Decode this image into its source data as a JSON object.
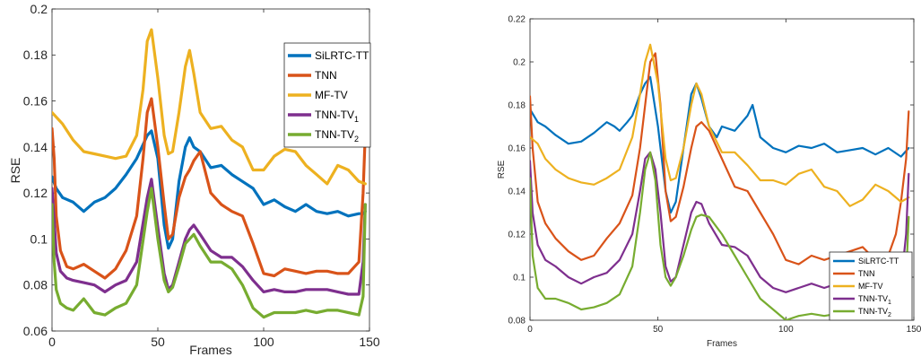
{
  "chart_data": [
    {
      "type": "line",
      "xlabel": "Frames",
      "ylabel": "RSE",
      "xlim": [
        0,
        150
      ],
      "ylim": [
        0.06,
        0.2
      ],
      "xticks": [
        "0",
        "50",
        "100",
        "150"
      ],
      "yticks": [
        "0.06",
        "0.08",
        "0.1",
        "0.12",
        "0.14",
        "0.16",
        "0.18",
        "0.2"
      ],
      "legend_position": "top-right",
      "series": [
        {
          "name": "SiLRTC-TT",
          "sub": "",
          "color": "#0072BD",
          "x": [
            0,
            2,
            5,
            10,
            15,
            20,
            25,
            30,
            35,
            40,
            45,
            47,
            50,
            53,
            55,
            57,
            60,
            63,
            65,
            67,
            70,
            75,
            80,
            85,
            90,
            95,
            100,
            105,
            110,
            115,
            120,
            125,
            130,
            135,
            140,
            145,
            147,
            148
          ],
          "y": [
            0.127,
            0.122,
            0.118,
            0.116,
            0.112,
            0.116,
            0.118,
            0.122,
            0.128,
            0.135,
            0.145,
            0.147,
            0.135,
            0.106,
            0.096,
            0.1,
            0.125,
            0.14,
            0.144,
            0.14,
            0.138,
            0.131,
            0.132,
            0.128,
            0.125,
            0.122,
            0.115,
            0.117,
            0.114,
            0.112,
            0.115,
            0.112,
            0.111,
            0.112,
            0.11,
            0.111,
            0.111,
            0.112
          ]
        },
        {
          "name": "TNN",
          "sub": "",
          "color": "#D95319",
          "x": [
            0,
            1,
            2,
            4,
            7,
            10,
            15,
            20,
            25,
            30,
            35,
            40,
            43,
            45,
            47,
            50,
            53,
            55,
            57,
            60,
            63,
            65,
            67,
            70,
            75,
            80,
            85,
            90,
            95,
            100,
            105,
            110,
            115,
            120,
            125,
            130,
            135,
            140,
            145,
            147,
            148
          ],
          "y": [
            0.148,
            0.135,
            0.11,
            0.095,
            0.088,
            0.087,
            0.089,
            0.086,
            0.083,
            0.087,
            0.095,
            0.11,
            0.135,
            0.155,
            0.161,
            0.14,
            0.115,
            0.1,
            0.102,
            0.118,
            0.127,
            0.13,
            0.134,
            0.138,
            0.12,
            0.115,
            0.112,
            0.11,
            0.098,
            0.085,
            0.084,
            0.087,
            0.086,
            0.085,
            0.086,
            0.086,
            0.085,
            0.085,
            0.09,
            0.12,
            0.146
          ]
        },
        {
          "name": "MF-TV",
          "sub": "",
          "color": "#EDB120",
          "x": [
            0,
            5,
            10,
            15,
            20,
            25,
            30,
            35,
            40,
            43,
            45,
            47,
            50,
            53,
            55,
            57,
            60,
            63,
            65,
            67,
            70,
            75,
            80,
            85,
            90,
            95,
            100,
            105,
            110,
            115,
            120,
            125,
            130,
            135,
            140,
            145,
            148
          ],
          "y": [
            0.155,
            0.15,
            0.143,
            0.138,
            0.137,
            0.136,
            0.135,
            0.136,
            0.145,
            0.165,
            0.186,
            0.191,
            0.17,
            0.145,
            0.137,
            0.138,
            0.155,
            0.175,
            0.182,
            0.172,
            0.155,
            0.148,
            0.149,
            0.143,
            0.14,
            0.13,
            0.13,
            0.136,
            0.139,
            0.138,
            0.132,
            0.128,
            0.124,
            0.132,
            0.13,
            0.125,
            0.124
          ]
        },
        {
          "name": "TNN-TV",
          "sub": "1",
          "color": "#7E2F8E",
          "x": [
            0,
            1,
            2,
            4,
            7,
            10,
            15,
            20,
            25,
            30,
            35,
            40,
            45,
            47,
            50,
            53,
            55,
            57,
            60,
            63,
            65,
            67,
            70,
            75,
            80,
            85,
            90,
            95,
            100,
            105,
            110,
            115,
            120,
            125,
            130,
            135,
            140,
            145,
            147,
            148
          ],
          "y": [
            0.122,
            0.108,
            0.094,
            0.086,
            0.083,
            0.082,
            0.081,
            0.08,
            0.077,
            0.08,
            0.082,
            0.09,
            0.118,
            0.126,
            0.105,
            0.085,
            0.078,
            0.08,
            0.09,
            0.1,
            0.104,
            0.106,
            0.102,
            0.095,
            0.092,
            0.092,
            0.088,
            0.082,
            0.077,
            0.078,
            0.077,
            0.077,
            0.078,
            0.078,
            0.078,
            0.077,
            0.076,
            0.076,
            0.09,
            0.115
          ]
        },
        {
          "name": "TNN-TV",
          "sub": "2",
          "color": "#77AC30",
          "x": [
            0,
            1,
            2,
            4,
            7,
            10,
            15,
            20,
            25,
            30,
            35,
            40,
            45,
            47,
            50,
            53,
            55,
            57,
            60,
            63,
            65,
            67,
            70,
            75,
            80,
            85,
            90,
            95,
            100,
            105,
            110,
            115,
            120,
            125,
            130,
            135,
            140,
            145,
            147,
            148
          ],
          "y": [
            0.115,
            0.09,
            0.078,
            0.072,
            0.07,
            0.069,
            0.074,
            0.068,
            0.067,
            0.07,
            0.072,
            0.08,
            0.112,
            0.122,
            0.1,
            0.082,
            0.077,
            0.079,
            0.088,
            0.098,
            0.1,
            0.102,
            0.097,
            0.09,
            0.09,
            0.087,
            0.08,
            0.07,
            0.066,
            0.068,
            0.068,
            0.068,
            0.069,
            0.068,
            0.069,
            0.069,
            0.068,
            0.067,
            0.075,
            0.115
          ]
        }
      ]
    },
    {
      "type": "line",
      "xlabel": "Frames",
      "ylabel": "RSE",
      "xlim": [
        0,
        150
      ],
      "ylim": [
        0.08,
        0.22
      ],
      "xticks": [
        "0",
        "50",
        "100",
        "150"
      ],
      "yticks": [
        "0.08",
        "0.1",
        "0.12",
        "0.14",
        "0.16",
        "0.18",
        "0.2",
        "0.22"
      ],
      "legend_position": "bottom-right",
      "series": [
        {
          "name": "SiLRTC-TT",
          "sub": "",
          "color": "#0072BD",
          "x": [
            0,
            3,
            6,
            10,
            15,
            20,
            25,
            30,
            33,
            35,
            38,
            40,
            43,
            45,
            47,
            50,
            53,
            55,
            57,
            60,
            63,
            65,
            67,
            70,
            73,
            75,
            80,
            85,
            87,
            90,
            95,
            100,
            105,
            110,
            115,
            120,
            125,
            130,
            135,
            140,
            145,
            148
          ],
          "y": [
            0.178,
            0.172,
            0.17,
            0.166,
            0.162,
            0.163,
            0.167,
            0.172,
            0.17,
            0.168,
            0.172,
            0.175,
            0.185,
            0.19,
            0.193,
            0.17,
            0.14,
            0.13,
            0.135,
            0.16,
            0.185,
            0.19,
            0.183,
            0.17,
            0.165,
            0.17,
            0.168,
            0.175,
            0.18,
            0.165,
            0.16,
            0.158,
            0.161,
            0.16,
            0.162,
            0.158,
            0.159,
            0.16,
            0.157,
            0.16,
            0.156,
            0.16
          ]
        },
        {
          "name": "TNN",
          "sub": "",
          "color": "#D95319",
          "x": [
            0,
            1,
            3,
            6,
            10,
            15,
            20,
            25,
            30,
            35,
            40,
            43,
            45,
            47,
            49,
            51,
            53,
            55,
            57,
            60,
            63,
            65,
            67,
            70,
            75,
            80,
            85,
            90,
            95,
            100,
            105,
            110,
            115,
            120,
            125,
            130,
            135,
            140,
            143,
            145,
            147,
            148
          ],
          "y": [
            0.184,
            0.16,
            0.135,
            0.125,
            0.118,
            0.112,
            0.108,
            0.11,
            0.118,
            0.125,
            0.138,
            0.16,
            0.18,
            0.2,
            0.204,
            0.18,
            0.14,
            0.126,
            0.128,
            0.142,
            0.16,
            0.17,
            0.172,
            0.168,
            0.155,
            0.142,
            0.14,
            0.13,
            0.12,
            0.108,
            0.106,
            0.11,
            0.108,
            0.11,
            0.112,
            0.114,
            0.108,
            0.11,
            0.12,
            0.135,
            0.155,
            0.177
          ]
        },
        {
          "name": "MF-TV",
          "sub": "",
          "color": "#EDB120",
          "x": [
            0,
            3,
            6,
            10,
            15,
            20,
            25,
            30,
            35,
            40,
            43,
            45,
            47,
            50,
            53,
            55,
            57,
            60,
            63,
            65,
            67,
            70,
            75,
            80,
            85,
            90,
            95,
            100,
            105,
            110,
            115,
            120,
            125,
            130,
            135,
            140,
            145,
            148
          ],
          "y": [
            0.165,
            0.162,
            0.155,
            0.15,
            0.146,
            0.144,
            0.143,
            0.146,
            0.15,
            0.165,
            0.185,
            0.2,
            0.208,
            0.19,
            0.155,
            0.145,
            0.146,
            0.16,
            0.18,
            0.19,
            0.185,
            0.17,
            0.158,
            0.158,
            0.152,
            0.145,
            0.145,
            0.143,
            0.148,
            0.15,
            0.142,
            0.14,
            0.133,
            0.136,
            0.143,
            0.14,
            0.135,
            0.137
          ]
        },
        {
          "name": "TNN-TV",
          "sub": "1",
          "color": "#7E2F8E",
          "x": [
            0,
            1,
            3,
            6,
            10,
            15,
            20,
            25,
            30,
            35,
            40,
            43,
            45,
            47,
            49,
            51,
            53,
            55,
            57,
            60,
            63,
            65,
            67,
            70,
            75,
            80,
            85,
            90,
            95,
            100,
            105,
            110,
            115,
            120,
            125,
            130,
            135,
            140,
            145,
            147,
            148
          ],
          "y": [
            0.154,
            0.13,
            0.115,
            0.108,
            0.105,
            0.1,
            0.097,
            0.1,
            0.102,
            0.108,
            0.12,
            0.14,
            0.155,
            0.158,
            0.15,
            0.13,
            0.105,
            0.098,
            0.1,
            0.115,
            0.13,
            0.135,
            0.134,
            0.125,
            0.115,
            0.114,
            0.11,
            0.1,
            0.095,
            0.093,
            0.095,
            0.097,
            0.095,
            0.097,
            0.094,
            0.097,
            0.093,
            0.095,
            0.097,
            0.12,
            0.148
          ]
        },
        {
          "name": "TNN-TV",
          "sub": "2",
          "color": "#77AC30",
          "x": [
            0,
            1,
            3,
            6,
            10,
            15,
            20,
            25,
            30,
            35,
            40,
            43,
            45,
            47,
            49,
            51,
            53,
            55,
            57,
            60,
            63,
            65,
            67,
            70,
            75,
            80,
            85,
            90,
            95,
            100,
            105,
            110,
            115,
            120,
            125,
            130,
            135,
            140,
            145,
            147,
            148
          ],
          "y": [
            0.146,
            0.11,
            0.095,
            0.09,
            0.09,
            0.088,
            0.085,
            0.086,
            0.088,
            0.092,
            0.105,
            0.13,
            0.15,
            0.158,
            0.145,
            0.115,
            0.1,
            0.096,
            0.1,
            0.11,
            0.122,
            0.128,
            0.129,
            0.128,
            0.12,
            0.11,
            0.1,
            0.09,
            0.085,
            0.08,
            0.082,
            0.083,
            0.082,
            0.083,
            0.084,
            0.083,
            0.083,
            0.084,
            0.085,
            0.1,
            0.128
          ]
        }
      ]
    }
  ]
}
